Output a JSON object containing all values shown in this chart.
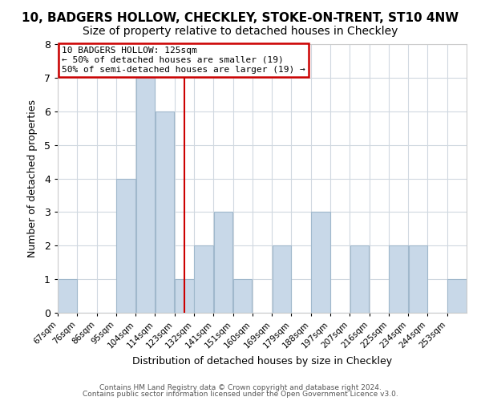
{
  "title": "10, BADGERS HOLLOW, CHECKLEY, STOKE-ON-TRENT, ST10 4NW",
  "subtitle": "Size of property relative to detached houses in Checkley",
  "xlabel": "Distribution of detached houses by size in Checkley",
  "ylabel": "Number of detached properties",
  "bar_color": "#c8d8e8",
  "bar_edge_color": "#a0b8cc",
  "grid_color": "#d0d8e0",
  "reference_line_color": "#cc0000",
  "bin_edges": [
    67,
    76,
    85,
    94,
    103,
    112,
    121,
    130,
    139,
    148,
    157,
    166,
    175,
    184,
    193,
    202,
    211,
    220,
    229,
    238,
    247,
    256
  ],
  "bin_labels_shown": [
    "67sqm",
    "76sqm",
    "86sqm",
    "95sqm",
    "104sqm",
    "114sqm",
    "123sqm",
    "132sqm",
    "141sqm",
    "151sqm",
    "160sqm",
    "169sqm",
    "179sqm",
    "188sqm",
    "197sqm",
    "207sqm",
    "216sqm",
    "225sqm",
    "234sqm",
    "244sqm",
    "253sqm"
  ],
  "counts": [
    1,
    0,
    0,
    4,
    7,
    6,
    1,
    2,
    3,
    1,
    0,
    2,
    0,
    3,
    0,
    2,
    0,
    2,
    2,
    0,
    1
  ],
  "ylim": [
    0,
    8
  ],
  "annotation_title": "10 BADGERS HOLLOW: 125sqm",
  "annotation_line1": "← 50% of detached houses are smaller (19)",
  "annotation_line2": "50% of semi-detached houses are larger (19) →",
  "annotation_box_color": "#ffffff",
  "annotation_box_edge_color": "#cc0000",
  "footer1": "Contains HM Land Registry data © Crown copyright and database right 2024.",
  "footer2": "Contains public sector information licensed under the Open Government Licence v3.0.",
  "background_color": "#ffffff",
  "title_fontsize": 11,
  "subtitle_fontsize": 10,
  "ref_bin_index": 6
}
